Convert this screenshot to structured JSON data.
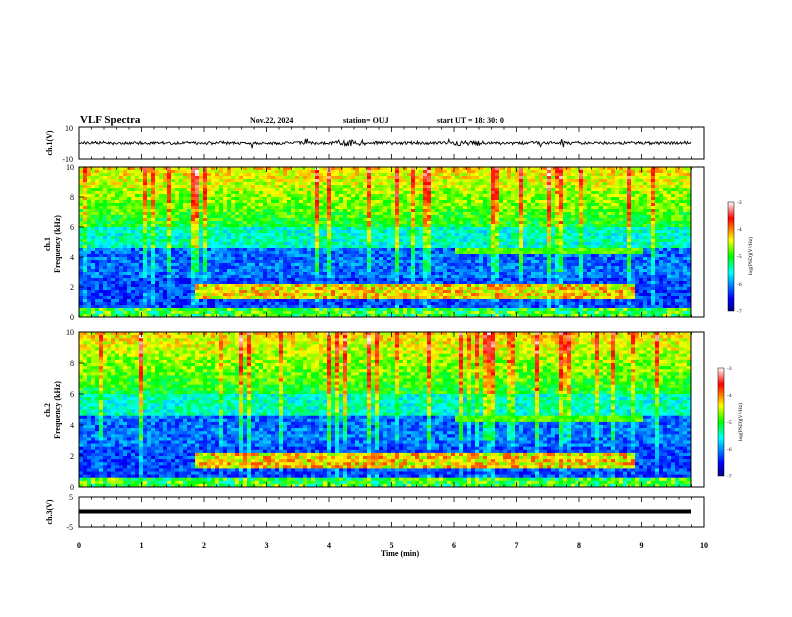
{
  "header": {
    "title": "VLF Spectra",
    "date": "Nov.22, 2024",
    "station": "station= OUJ",
    "start": "start  UT =   18: 30: 0"
  },
  "chart_data": [
    {
      "type": "line",
      "ylabel": "ch.1(V)",
      "ylim": [
        -10,
        10
      ],
      "tick_labels": [
        "10",
        "-10"
      ],
      "description_series": "waveform",
      "color": "#000000"
    },
    {
      "type": "heatmap",
      "ylabel_lines": [
        "ch.1",
        "Frequency (kHz)"
      ],
      "ylim": [
        0,
        10
      ],
      "xlim": [
        0,
        10
      ],
      "yticks": [
        "0",
        "2",
        "4",
        "6",
        "8",
        "10"
      ],
      "colorbar": {
        "label": "log(PSD)(V²/Hz)",
        "ticks": [
          "-3",
          "-4",
          "-5",
          "-6",
          "-7"
        ],
        "range": [
          -7,
          -3
        ]
      }
    },
    {
      "type": "heatmap",
      "ylabel_lines": [
        "ch.2",
        "Frequency (kHz)"
      ],
      "ylim": [
        0,
        10
      ],
      "xlim": [
        0,
        10
      ],
      "yticks": [
        "0",
        "2",
        "4",
        "6",
        "8",
        "10"
      ],
      "colorbar": {
        "label": "log(PSD)(V²/Hz)",
        "ticks": [
          "-3",
          "-4",
          "-5",
          "-6",
          "-7"
        ],
        "range": [
          -7,
          -3
        ]
      }
    },
    {
      "type": "line",
      "ylabel": "ch.3(V)",
      "ylim": [
        -5,
        5
      ],
      "tick_labels": [
        "5",
        "-5"
      ],
      "color": "#000000"
    }
  ],
  "xaxis": {
    "label": "Time (min)",
    "ticks": [
      "0",
      "1",
      "2",
      "3",
      "4",
      "5",
      "6",
      "7",
      "8",
      "9",
      "10"
    ],
    "xlim": [
      0,
      10
    ]
  }
}
